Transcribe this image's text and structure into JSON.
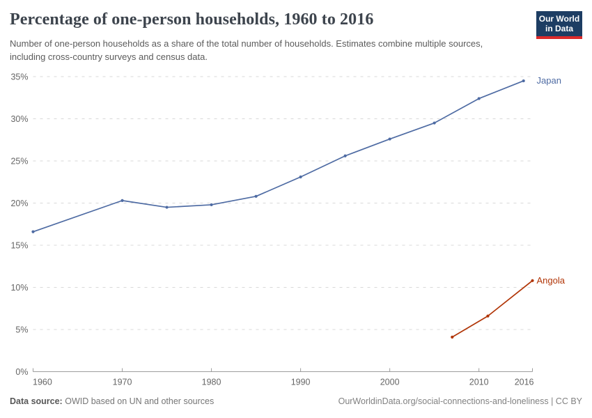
{
  "header": {
    "title": "Percentage of one-person households, 1960 to 2016",
    "subtitle": "Number of one-person households as a share of the total number of households. Estimates combine multiple sources, including cross-country surveys and census data.",
    "logo": {
      "line1": "Our World",
      "line2": "in Data",
      "bg_color": "#1d3d63",
      "accent_color": "#dc2a2a"
    }
  },
  "chart_data": {
    "type": "line",
    "title": "Percentage of one-person households, 1960 to 2016",
    "xlabel": "",
    "ylabel": "",
    "xlim": [
      1960,
      2016
    ],
    "ylim": [
      0,
      35
    ],
    "grid": "horizontal-dashed",
    "grid_color": "#d8d8d8",
    "axis_color": "#9c9c9c",
    "legend_position": "line-end-labels",
    "x_ticks": [
      {
        "v": 1960,
        "label": "1960"
      },
      {
        "v": 1970,
        "label": "1970"
      },
      {
        "v": 1980,
        "label": "1980"
      },
      {
        "v": 1990,
        "label": "1990"
      },
      {
        "v": 2000,
        "label": "2000"
      },
      {
        "v": 2010,
        "label": "2010"
      },
      {
        "v": 2016,
        "label": "2016"
      }
    ],
    "y_ticks": [
      {
        "v": 0,
        "label": "0%"
      },
      {
        "v": 5,
        "label": "5%"
      },
      {
        "v": 10,
        "label": "10%"
      },
      {
        "v": 15,
        "label": "15%"
      },
      {
        "v": 20,
        "label": "20%"
      },
      {
        "v": 25,
        "label": "25%"
      },
      {
        "v": 30,
        "label": "30%"
      },
      {
        "v": 35,
        "label": "35%"
      }
    ],
    "series": [
      {
        "name": "Japan",
        "color": "#4e6ba3",
        "x": [
          1960,
          1970,
          1975,
          1980,
          1985,
          1990,
          1995,
          2000,
          2005,
          2010,
          2015
        ],
        "y": [
          16.6,
          20.3,
          19.5,
          19.8,
          20.8,
          23.1,
          25.6,
          27.6,
          29.5,
          32.4,
          34.5
        ]
      },
      {
        "name": "Angola",
        "color": "#b13507",
        "x": [
          2007,
          2011,
          2016
        ],
        "y": [
          4.1,
          6.6,
          10.8
        ]
      }
    ]
  },
  "footer": {
    "datasource_label": "Data source:",
    "datasource_text": "OWID based on UN and other sources",
    "citation": "OurWorldinData.org/social-connections-and-loneliness | CC BY"
  }
}
